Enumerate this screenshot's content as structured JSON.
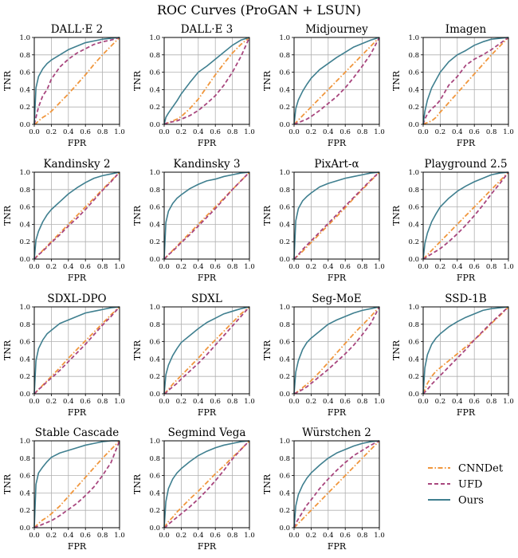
{
  "chart_data": {
    "type": "line",
    "title": "ROC Curves (ProGAN + LSUN)",
    "xlabel": "FPR",
    "ylabel": "TNR",
    "xlim": [
      0,
      1
    ],
    "ylim": [
      0,
      1
    ],
    "xticks": [
      "0.0",
      "0.2",
      "0.4",
      "0.6",
      "0.8",
      "1.0"
    ],
    "yticks": [
      "0.0",
      "0.2",
      "0.4",
      "0.6",
      "0.8",
      "1.0"
    ],
    "grid": true,
    "legend": {
      "placement": "bottom-right (empty grid cell)",
      "entries": [
        {
          "name": "CNNDet",
          "color": "#f0963c",
          "style": "dashdot"
        },
        {
          "name": "UFD",
          "color": "#a8467e",
          "style": "dashed"
        },
        {
          "name": "Ours",
          "color": "#3f7f8f",
          "style": "solid"
        }
      ]
    },
    "x": [
      0,
      0.02,
      0.05,
      0.1,
      0.15,
      0.2,
      0.3,
      0.4,
      0.5,
      0.6,
      0.7,
      0.8,
      0.9,
      1.0
    ],
    "panels": [
      {
        "title": "DALL·E 2",
        "series": [
          {
            "name": "CNNDet",
            "values": [
              0,
              0.01,
              0.04,
              0.08,
              0.11,
              0.15,
              0.25,
              0.35,
              0.46,
              0.57,
              0.69,
              0.8,
              0.9,
              1.0
            ]
          },
          {
            "name": "UFD",
            "values": [
              0,
              0.08,
              0.2,
              0.33,
              0.4,
              0.52,
              0.66,
              0.75,
              0.82,
              0.87,
              0.92,
              0.95,
              0.97,
              1.0
            ]
          },
          {
            "name": "Ours",
            "values": [
              0,
              0.42,
              0.55,
              0.64,
              0.7,
              0.74,
              0.8,
              0.86,
              0.9,
              0.94,
              0.96,
              0.98,
              0.99,
              1.0
            ]
          }
        ]
      },
      {
        "title": "DALL·E 3",
        "series": [
          {
            "name": "CNNDet",
            "values": [
              0,
              0.01,
              0.02,
              0.04,
              0.06,
              0.09,
              0.18,
              0.29,
              0.43,
              0.57,
              0.7,
              0.82,
              0.92,
              1.0
            ]
          },
          {
            "name": "UFD",
            "values": [
              0,
              0.01,
              0.02,
              0.03,
              0.04,
              0.06,
              0.1,
              0.16,
              0.24,
              0.33,
              0.45,
              0.6,
              0.78,
              1.0
            ]
          },
          {
            "name": "Ours",
            "values": [
              0,
              0.08,
              0.13,
              0.2,
              0.27,
              0.35,
              0.48,
              0.6,
              0.67,
              0.75,
              0.83,
              0.91,
              0.97,
              1.0
            ]
          }
        ]
      },
      {
        "title": "Midjourney",
        "series": [
          {
            "name": "CNNDet",
            "values": [
              0,
              0.02,
              0.05,
              0.1,
              0.15,
              0.2,
              0.3,
              0.4,
              0.5,
              0.6,
              0.7,
              0.8,
              0.9,
              1.0
            ]
          },
          {
            "name": "UFD",
            "values": [
              0,
              0.01,
              0.02,
              0.04,
              0.06,
              0.09,
              0.16,
              0.24,
              0.32,
              0.42,
              0.54,
              0.67,
              0.81,
              1.0
            ]
          },
          {
            "name": "Ours",
            "values": [
              0,
              0.18,
              0.28,
              0.38,
              0.46,
              0.53,
              0.63,
              0.7,
              0.77,
              0.83,
              0.89,
              0.93,
              0.97,
              1.0
            ]
          }
        ]
      },
      {
        "title": "Imagen",
        "series": [
          {
            "name": "CNNDet",
            "values": [
              0,
              0.01,
              0.02,
              0.04,
              0.08,
              0.14,
              0.25,
              0.36,
              0.47,
              0.58,
              0.69,
              0.8,
              0.9,
              1.0
            ]
          },
          {
            "name": "UFD",
            "values": [
              0,
              0.06,
              0.12,
              0.18,
              0.22,
              0.28,
              0.45,
              0.55,
              0.68,
              0.75,
              0.8,
              0.86,
              0.93,
              1.0
            ]
          },
          {
            "name": "Ours",
            "values": [
              0,
              0.15,
              0.28,
              0.42,
              0.51,
              0.6,
              0.72,
              0.8,
              0.85,
              0.91,
              0.95,
              0.98,
              0.99,
              1.0
            ]
          }
        ]
      },
      {
        "title": "Kandinsky 2",
        "series": [
          {
            "name": "CNNDet",
            "values": [
              0,
              0.02,
              0.05,
              0.1,
              0.15,
              0.2,
              0.3,
              0.4,
              0.5,
              0.6,
              0.7,
              0.8,
              0.9,
              1.0
            ]
          },
          {
            "name": "UFD",
            "values": [
              0,
              0.02,
              0.05,
              0.09,
              0.14,
              0.19,
              0.28,
              0.38,
              0.47,
              0.57,
              0.68,
              0.79,
              0.89,
              1.0
            ]
          },
          {
            "name": "Ours",
            "values": [
              0,
              0.22,
              0.32,
              0.43,
              0.51,
              0.57,
              0.66,
              0.75,
              0.82,
              0.88,
              0.93,
              0.96,
              0.98,
              1.0
            ]
          }
        ]
      },
      {
        "title": "Kandinsky 3",
        "series": [
          {
            "name": "CNNDet",
            "values": [
              0,
              0.02,
              0.05,
              0.1,
              0.15,
              0.2,
              0.3,
              0.4,
              0.5,
              0.6,
              0.7,
              0.8,
              0.9,
              1.0
            ]
          },
          {
            "name": "UFD",
            "values": [
              0,
              0.02,
              0.05,
              0.09,
              0.14,
              0.19,
              0.28,
              0.38,
              0.48,
              0.58,
              0.69,
              0.8,
              0.9,
              1.0
            ]
          },
          {
            "name": "Ours",
            "values": [
              0,
              0.42,
              0.55,
              0.64,
              0.7,
              0.74,
              0.81,
              0.86,
              0.9,
              0.92,
              0.95,
              0.97,
              0.99,
              1.0
            ]
          }
        ]
      },
      {
        "title": "PixArt-α",
        "series": [
          {
            "name": "CNNDet",
            "values": [
              0,
              0.02,
              0.04,
              0.09,
              0.14,
              0.19,
              0.29,
              0.39,
              0.49,
              0.59,
              0.7,
              0.8,
              0.9,
              1.0
            ]
          },
          {
            "name": "UFD",
            "values": [
              0,
              0.02,
              0.05,
              0.11,
              0.16,
              0.21,
              0.31,
              0.41,
              0.51,
              0.61,
              0.71,
              0.81,
              0.91,
              1.0
            ]
          },
          {
            "name": "Ours",
            "values": [
              0,
              0.44,
              0.58,
              0.67,
              0.72,
              0.76,
              0.83,
              0.87,
              0.9,
              0.93,
              0.95,
              0.97,
              0.99,
              1.0
            ]
          }
        ]
      },
      {
        "title": "Playground 2.5",
        "series": [
          {
            "name": "CNNDet",
            "values": [
              0,
              0.02,
              0.05,
              0.1,
              0.15,
              0.2,
              0.3,
              0.4,
              0.5,
              0.6,
              0.7,
              0.8,
              0.9,
              1.0
            ]
          },
          {
            "name": "UFD",
            "values": [
              0,
              0.01,
              0.03,
              0.06,
              0.09,
              0.12,
              0.2,
              0.29,
              0.39,
              0.5,
              0.62,
              0.75,
              0.87,
              1.0
            ]
          },
          {
            "name": "Ours",
            "values": [
              0,
              0.18,
              0.3,
              0.43,
              0.52,
              0.6,
              0.7,
              0.78,
              0.84,
              0.89,
              0.93,
              0.97,
              0.99,
              1.0
            ]
          }
        ]
      },
      {
        "title": "SDXL-DPO",
        "series": [
          {
            "name": "CNNDet",
            "values": [
              0,
              0.02,
              0.05,
              0.1,
              0.15,
              0.2,
              0.3,
              0.41,
              0.51,
              0.61,
              0.71,
              0.81,
              0.91,
              1.0
            ]
          },
          {
            "name": "UFD",
            "values": [
              0,
              0.02,
              0.05,
              0.09,
              0.14,
              0.18,
              0.27,
              0.37,
              0.47,
              0.57,
              0.68,
              0.79,
              0.89,
              1.0
            ]
          },
          {
            "name": "Ours",
            "values": [
              0,
              0.38,
              0.52,
              0.62,
              0.69,
              0.73,
              0.81,
              0.85,
              0.89,
              0.93,
              0.95,
              0.97,
              0.99,
              1.0
            ]
          }
        ]
      },
      {
        "title": "SDXL",
        "series": [
          {
            "name": "CNNDet",
            "values": [
              0,
              0.02,
              0.05,
              0.11,
              0.16,
              0.21,
              0.31,
              0.41,
              0.52,
              0.62,
              0.72,
              0.82,
              0.92,
              1.0
            ]
          },
          {
            "name": "UFD",
            "values": [
              0,
              0.01,
              0.04,
              0.08,
              0.12,
              0.17,
              0.26,
              0.35,
              0.45,
              0.56,
              0.67,
              0.78,
              0.89,
              1.0
            ]
          },
          {
            "name": "Ours",
            "values": [
              0,
              0.22,
              0.33,
              0.44,
              0.52,
              0.59,
              0.67,
              0.75,
              0.82,
              0.87,
              0.92,
              0.95,
              0.98,
              1.0
            ]
          }
        ]
      },
      {
        "title": "Seg-MoE",
        "series": [
          {
            "name": "CNNDet",
            "values": [
              0,
              0.01,
              0.03,
              0.07,
              0.11,
              0.15,
              0.25,
              0.36,
              0.47,
              0.58,
              0.69,
              0.79,
              0.89,
              1.0
            ]
          },
          {
            "name": "UFD",
            "values": [
              0,
              0.01,
              0.02,
              0.05,
              0.08,
              0.12,
              0.2,
              0.28,
              0.37,
              0.46,
              0.56,
              0.68,
              0.81,
              1.0
            ]
          },
          {
            "name": "Ours",
            "values": [
              0,
              0.25,
              0.38,
              0.51,
              0.59,
              0.64,
              0.72,
              0.8,
              0.85,
              0.89,
              0.93,
              0.96,
              0.98,
              1.0
            ]
          }
        ]
      },
      {
        "title": "SSD-1B",
        "series": [
          {
            "name": "CNNDet",
            "values": [
              0,
              0.05,
              0.12,
              0.2,
              0.26,
              0.3,
              0.38,
              0.46,
              0.54,
              0.62,
              0.71,
              0.81,
              0.9,
              1.0
            ]
          },
          {
            "name": "UFD",
            "values": [
              0,
              0.02,
              0.05,
              0.11,
              0.16,
              0.21,
              0.31,
              0.41,
              0.51,
              0.62,
              0.72,
              0.82,
              0.91,
              1.0
            ]
          },
          {
            "name": "Ours",
            "values": [
              0,
              0.3,
              0.45,
              0.57,
              0.64,
              0.69,
              0.77,
              0.83,
              0.88,
              0.92,
              0.96,
              0.98,
              0.99,
              1.0
            ]
          }
        ]
      },
      {
        "title": "Stable Cascade",
        "series": [
          {
            "name": "CNNDet",
            "values": [
              0,
              0.02,
              0.05,
              0.09,
              0.12,
              0.16,
              0.25,
              0.36,
              0.47,
              0.58,
              0.69,
              0.8,
              0.9,
              1.0
            ]
          },
          {
            "name": "UFD",
            "values": [
              0,
              0.01,
              0.02,
              0.04,
              0.06,
              0.08,
              0.14,
              0.21,
              0.28,
              0.37,
              0.47,
              0.6,
              0.75,
              1.0
            ]
          },
          {
            "name": "Ours",
            "values": [
              0,
              0.5,
              0.63,
              0.7,
              0.76,
              0.81,
              0.86,
              0.89,
              0.92,
              0.95,
              0.97,
              0.99,
              1.0,
              1.0
            ]
          }
        ]
      },
      {
        "title": "Segmind Vega",
        "series": [
          {
            "name": "CNNDet",
            "values": [
              0,
              0.03,
              0.07,
              0.12,
              0.18,
              0.23,
              0.33,
              0.42,
              0.52,
              0.62,
              0.71,
              0.81,
              0.9,
              1.0
            ]
          },
          {
            "name": "UFD",
            "values": [
              0,
              0.01,
              0.04,
              0.08,
              0.12,
              0.16,
              0.24,
              0.33,
              0.43,
              0.54,
              0.66,
              0.79,
              0.9,
              1.0
            ]
          },
          {
            "name": "Ours",
            "values": [
              0,
              0.3,
              0.45,
              0.56,
              0.63,
              0.68,
              0.76,
              0.83,
              0.88,
              0.92,
              0.95,
              0.97,
              0.99,
              1.0
            ]
          }
        ]
      },
      {
        "title": "Würstchen 2",
        "series": [
          {
            "name": "CNNDet",
            "values": [
              0,
              0.02,
              0.05,
              0.1,
              0.15,
              0.2,
              0.3,
              0.4,
              0.5,
              0.6,
              0.7,
              0.8,
              0.9,
              1.0
            ]
          },
          {
            "name": "UFD",
            "values": [
              0,
              0.05,
              0.1,
              0.18,
              0.26,
              0.32,
              0.45,
              0.56,
              0.66,
              0.75,
              0.83,
              0.89,
              0.95,
              1.0
            ]
          },
          {
            "name": "Ours",
            "values": [
              0,
              0.25,
              0.38,
              0.49,
              0.57,
              0.63,
              0.72,
              0.8,
              0.86,
              0.9,
              0.94,
              0.97,
              0.99,
              1.0
            ]
          }
        ]
      }
    ]
  }
}
